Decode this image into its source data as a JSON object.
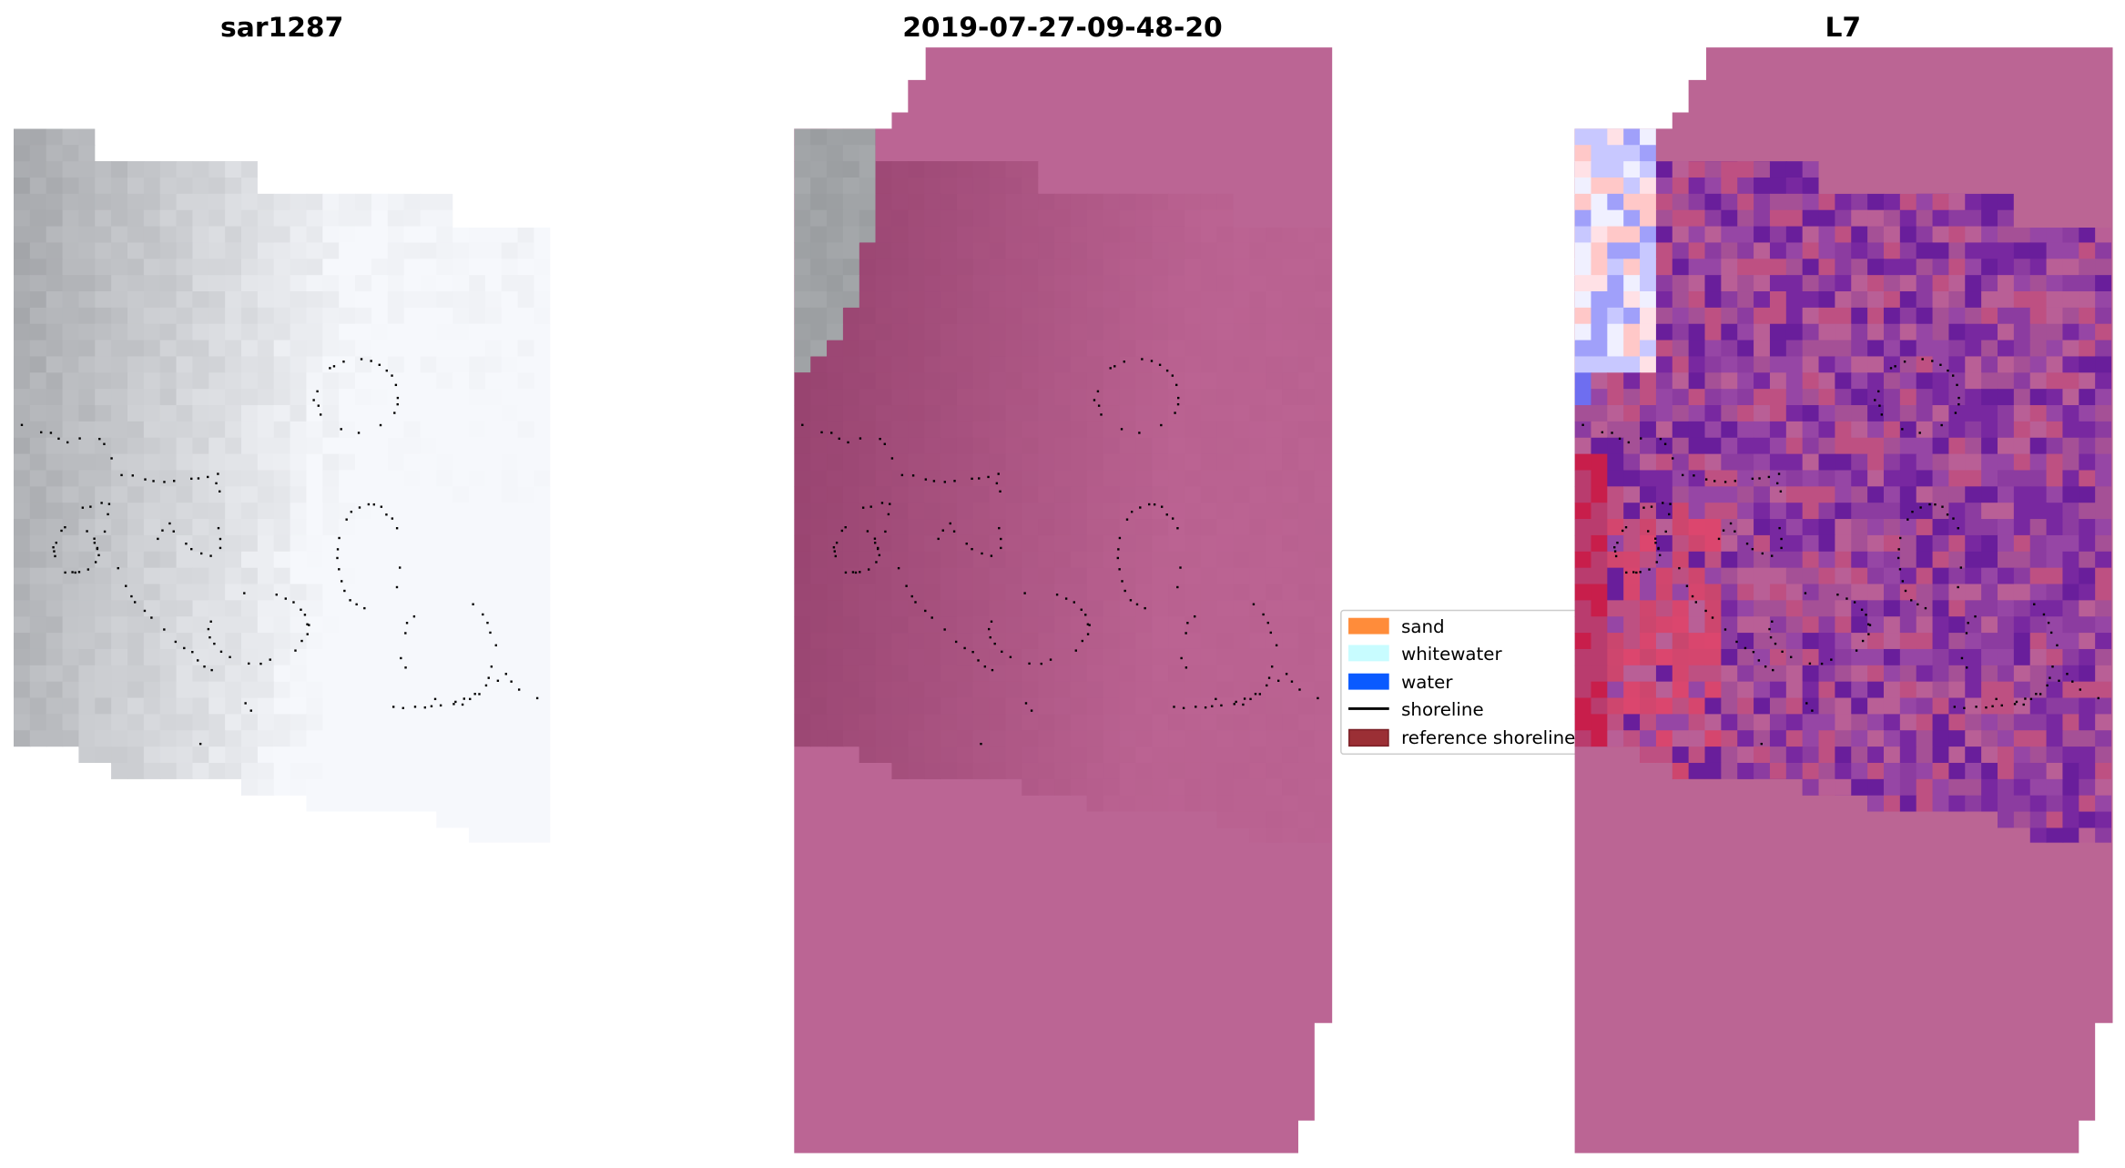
{
  "panels": [
    {
      "title": "sar1287"
    },
    {
      "title": "2019-07-27-09-48-20"
    },
    {
      "title": "L7"
    }
  ],
  "legend": {
    "items": [
      {
        "label": "sand",
        "color": "#ff8c3a",
        "kind": "patch"
      },
      {
        "label": "whitewater",
        "color": "#c8fcff",
        "kind": "patch"
      },
      {
        "label": "water",
        "color": "#0a5aff",
        "kind": "patch"
      },
      {
        "label": "shoreline",
        "color": "#000000",
        "kind": "line"
      },
      {
        "label": "reference shoreline",
        "color": "#9b2f35",
        "kind": "patch"
      }
    ]
  },
  "colors": {
    "overlay_pink": "#bb6594",
    "overlay_dark": "#a44f7f"
  }
}
